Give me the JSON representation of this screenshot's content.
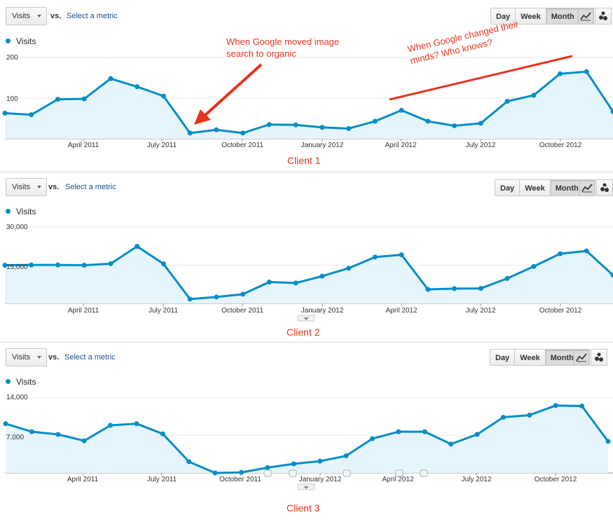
{
  "controls": {
    "metric_label": "Visits",
    "vs_label": "vs.",
    "select_metric_label": "Select a metric",
    "period_buttons": [
      "Day",
      "Week",
      "Month"
    ],
    "active_period": "Month",
    "accent_color": "#058dc7",
    "fill_color": "#e6f4fb",
    "annotation_color": "#e8331e"
  },
  "annotations": {
    "first": "When Google moved image search to organic",
    "second": "When Google changed their minds? Who knows?"
  },
  "chart_data": [
    {
      "type": "area",
      "title": "Client 1",
      "series": [
        {
          "name": "Visits",
          "values": [
            63,
            59,
            97,
            98,
            148,
            128,
            105,
            14,
            22,
            14,
            35,
            34,
            28,
            25,
            43,
            70,
            43,
            32,
            38,
            92,
            107,
            160,
            165,
            67
          ]
        }
      ],
      "x_tick_labels": [
        "April 2011",
        "July 2011",
        "October 2011",
        "January 2012",
        "April 2012",
        "July 2012",
        "October 2012"
      ],
      "y_tick_labels": [
        "200",
        "100"
      ],
      "ylim": [
        0,
        200
      ],
      "grid": true
    },
    {
      "type": "area",
      "title": "Client 2",
      "series": [
        {
          "name": "Visits",
          "values": [
            15000,
            15100,
            15100,
            15000,
            15600,
            22400,
            15500,
            1700,
            2500,
            3600,
            8400,
            8000,
            10700,
            13800,
            18200,
            19100,
            5500,
            5800,
            5900,
            9800,
            14500,
            19500,
            20600,
            11100
          ]
        }
      ],
      "x_tick_labels": [
        "April 2011",
        "July 2011",
        "October 2011",
        "January 2012",
        "April 2012",
        "July 2012",
        "October 2012"
      ],
      "y_tick_labels": [
        "30,000",
        "15,000"
      ],
      "ylim": [
        0,
        30000
      ],
      "grid": true
    },
    {
      "type": "area",
      "title": "Client 3",
      "series": [
        {
          "name": "Visits",
          "values": [
            9200,
            7700,
            7200,
            6000,
            8900,
            9200,
            7300,
            2100,
            0,
            100,
            1000,
            1700,
            2200,
            3200,
            6400,
            7700,
            7700,
            5400,
            7200,
            10400,
            10800,
            12600,
            12500,
            5900
          ]
        }
      ],
      "x_tick_labels": [
        "April 2011",
        "July 2011",
        "October 2011",
        "January 2012",
        "April 2012",
        "July 2012",
        "October 2012"
      ],
      "y_tick_labels": [
        "14,000",
        "7,000"
      ],
      "ylim": [
        0,
        14000
      ],
      "grid": true
    }
  ]
}
